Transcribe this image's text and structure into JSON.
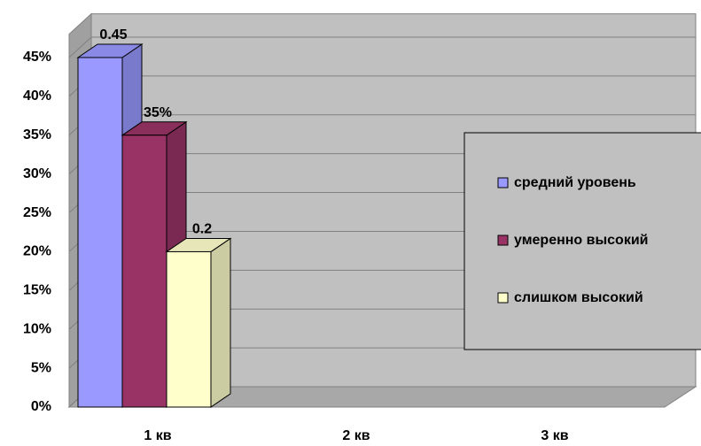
{
  "chart_data": {
    "type": "bar3d",
    "categories": [
      "1 кв",
      "2 кв",
      "3 кв"
    ],
    "series": [
      {
        "name": "средний уровень",
        "color": "#9999ff",
        "values": [
          45,
          null,
          null
        ],
        "value_labels": [
          "0.45",
          null,
          null
        ]
      },
      {
        "name": "умеренно высокий",
        "color": "#993366",
        "values": [
          35,
          null,
          null
        ],
        "value_labels": [
          "35%",
          null,
          null
        ]
      },
      {
        "name": "слишком высокий",
        "color": "#ffffcc",
        "values": [
          20,
          null,
          null
        ],
        "value_labels": [
          "0.2",
          null,
          null
        ]
      }
    ],
    "ylim": [
      0,
      48
    ],
    "yticks": [
      {
        "value": 0,
        "label": "0%"
      },
      {
        "value": 5,
        "label": "5%"
      },
      {
        "value": 10,
        "label": "10%"
      },
      {
        "value": 15,
        "label": "15%"
      },
      {
        "value": 20,
        "label": "20%"
      },
      {
        "value": 25,
        "label": "25%"
      },
      {
        "value": 30,
        "label": "30%"
      },
      {
        "value": 35,
        "label": "35%"
      },
      {
        "value": 40,
        "label": "40%"
      },
      {
        "value": 45,
        "label": "45%"
      }
    ],
    "grid": true
  }
}
